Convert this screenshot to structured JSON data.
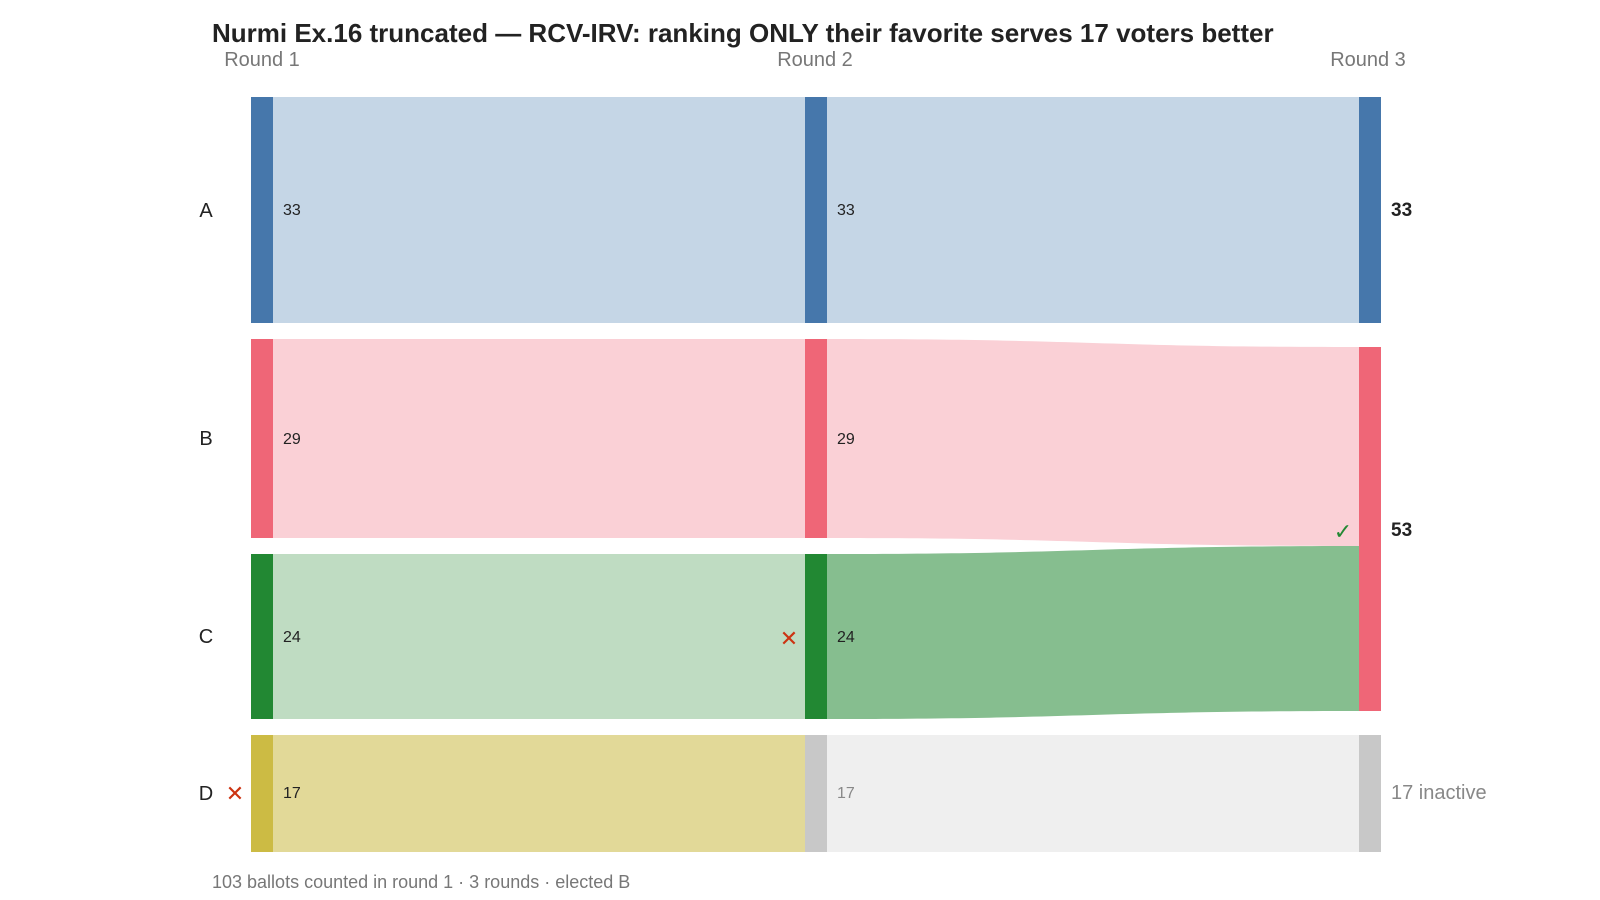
{
  "title": "Nurmi Ex.16 truncated — RCV-IRV: ranking ONLY their favorite serves 17 voters better",
  "footer": "103 ballots counted in round 1 · 3 rounds · elected B",
  "rounds": [
    "Round 1",
    "Round 2",
    "Round 3"
  ],
  "colors": {
    "A": "#4677ab",
    "B": "#ef6677",
    "C": "#228833",
    "D": "#ccbb44",
    "inactive": "#c8c8c8",
    "eliminated_mark": "#cc3311",
    "winner_mark": "#228833"
  },
  "candidates": [
    {
      "name": "A",
      "round_values": [
        "33",
        "33"
      ],
      "final": "33"
    },
    {
      "name": "B",
      "round_values": [
        "29",
        "29"
      ],
      "final": "53"
    },
    {
      "name": "C",
      "round_values": [
        "24",
        "24"
      ]
    },
    {
      "name": "D",
      "round_values": [
        "17"
      ]
    }
  ],
  "inactive": {
    "round2_value": "17",
    "final_label": "17 inactive"
  },
  "marks": {
    "eliminated": "✕",
    "elected": "✓"
  },
  "chart_data": {
    "type": "sankey",
    "rounds": [
      "Round 1",
      "Round 2",
      "Round 3"
    ],
    "round1": {
      "A": 33,
      "B": 29,
      "C": 24,
      "D": 17
    },
    "round2": {
      "A": 33,
      "B": 29,
      "C": 24,
      "inactive": 17
    },
    "round3": {
      "A": 33,
      "B": 53,
      "inactive": 17
    },
    "eliminated": [
      "D (round 1)",
      "C (round 2)"
    ],
    "transfers": [
      {
        "from": "D",
        "to": "inactive",
        "round": 2,
        "value": 17
      },
      {
        "from": "C",
        "to": "B",
        "round": 3,
        "value": 24
      }
    ],
    "winner": "B"
  }
}
